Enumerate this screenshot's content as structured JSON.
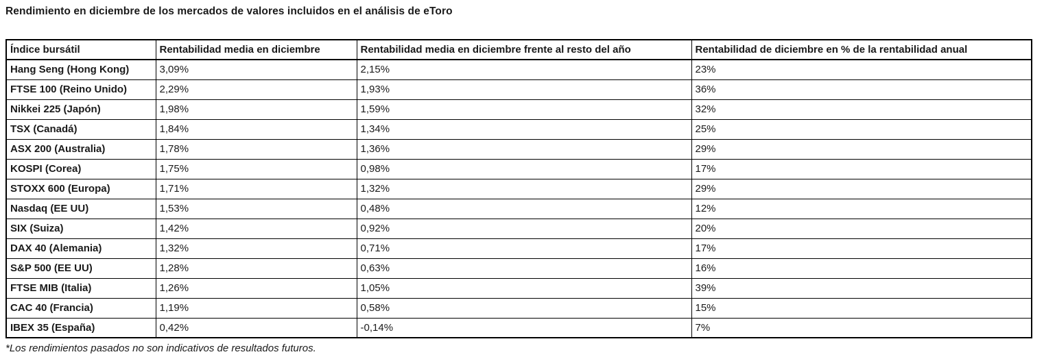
{
  "page": {
    "title": "Rendimiento en diciembre de los mercados de valores incluidos en el análisis de eToro",
    "footnote": "*Los rendimientos pasados no son indicativos de resultados futuros."
  },
  "table": {
    "columns": [
      "Índice bursátil",
      "Rentabilidad media en diciembre",
      "Rentabilidad media en diciembre frente al resto del año",
      "Rentabilidad de diciembre en % de la rentabilidad anual"
    ],
    "rows": [
      [
        "Hang Seng (Hong Kong)",
        "3,09%",
        "2,15%",
        "23%"
      ],
      [
        "FTSE 100 (Reino Unido)",
        "2,29%",
        "1,93%",
        "36%"
      ],
      [
        "Nikkei 225 (Japón)",
        "1,98%",
        "1,59%",
        "32%"
      ],
      [
        "TSX (Canadá)",
        "1,84%",
        "1,34%",
        "25%"
      ],
      [
        "ASX 200 (Australia)",
        "1,78%",
        "1,36%",
        "29%"
      ],
      [
        "KOSPI (Corea)",
        "1,75%",
        "0,98%",
        "17%"
      ],
      [
        "STOXX 600 (Europa)",
        "1,71%",
        "1,32%",
        "29%"
      ],
      [
        "Nasdaq (EE UU)",
        "1,53%",
        "0,48%",
        "12%"
      ],
      [
        "SIX (Suiza)",
        "1,42%",
        "0,92%",
        "20%"
      ],
      [
        "DAX 40 (Alemania)",
        "1,32%",
        "0,71%",
        "17%"
      ],
      [
        "S&P 500 (EE UU)",
        "1,28%",
        "0,63%",
        "16%"
      ],
      [
        "FTSE MIB (Italia)",
        "1,26%",
        "1,05%",
        "39%"
      ],
      [
        "CAC 40 (Francia)",
        "1,19%",
        "0,58%",
        "15%"
      ],
      [
        "IBEX 35 (España)",
        "0,42%",
        "-0,14%",
        "7%"
      ]
    ]
  },
  "chart_data": {
    "type": "table",
    "title": "Rendimiento en diciembre de los mercados de valores incluidos en el análisis de eToro",
    "columns": [
      "Índice bursátil",
      "Rentabilidad media en diciembre",
      "Rentabilidad media en diciembre frente al resto del año",
      "Rentabilidad de diciembre en % de la rentabilidad anual"
    ],
    "rows": [
      {
        "indice": "Hang Seng (Hong Kong)",
        "rentabilidad_media_diciembre_pct": 3.09,
        "frente_resto_ano_pct": 2.15,
        "pct_rentabilidad_anual": 23
      },
      {
        "indice": "FTSE 100 (Reino Unido)",
        "rentabilidad_media_diciembre_pct": 2.29,
        "frente_resto_ano_pct": 1.93,
        "pct_rentabilidad_anual": 36
      },
      {
        "indice": "Nikkei 225 (Japón)",
        "rentabilidad_media_diciembre_pct": 1.98,
        "frente_resto_ano_pct": 1.59,
        "pct_rentabilidad_anual": 32
      },
      {
        "indice": "TSX (Canadá)",
        "rentabilidad_media_diciembre_pct": 1.84,
        "frente_resto_ano_pct": 1.34,
        "pct_rentabilidad_anual": 25
      },
      {
        "indice": "ASX 200 (Australia)",
        "rentabilidad_media_diciembre_pct": 1.78,
        "frente_resto_ano_pct": 1.36,
        "pct_rentabilidad_anual": 29
      },
      {
        "indice": "KOSPI (Corea)",
        "rentabilidad_media_diciembre_pct": 1.75,
        "frente_resto_ano_pct": 0.98,
        "pct_rentabilidad_anual": 17
      },
      {
        "indice": "STOXX 600 (Europa)",
        "rentabilidad_media_diciembre_pct": 1.71,
        "frente_resto_ano_pct": 1.32,
        "pct_rentabilidad_anual": 29
      },
      {
        "indice": "Nasdaq (EE UU)",
        "rentabilidad_media_diciembre_pct": 1.53,
        "frente_resto_ano_pct": 0.48,
        "pct_rentabilidad_anual": 12
      },
      {
        "indice": "SIX (Suiza)",
        "rentabilidad_media_diciembre_pct": 1.42,
        "frente_resto_ano_pct": 0.92,
        "pct_rentabilidad_anual": 20
      },
      {
        "indice": "DAX 40 (Alemania)",
        "rentabilidad_media_diciembre_pct": 1.32,
        "frente_resto_ano_pct": 0.71,
        "pct_rentabilidad_anual": 17
      },
      {
        "indice": "S&P 500 (EE UU)",
        "rentabilidad_media_diciembre_pct": 1.28,
        "frente_resto_ano_pct": 0.63,
        "pct_rentabilidad_anual": 16
      },
      {
        "indice": "FTSE MIB (Italia)",
        "rentabilidad_media_diciembre_pct": 1.26,
        "frente_resto_ano_pct": 1.05,
        "pct_rentabilidad_anual": 39
      },
      {
        "indice": "CAC 40 (Francia)",
        "rentabilidad_media_diciembre_pct": 1.19,
        "frente_resto_ano_pct": 0.58,
        "pct_rentabilidad_anual": 15
      },
      {
        "indice": "IBEX 35 (España)",
        "rentabilidad_media_diciembre_pct": 0.42,
        "frente_resto_ano_pct": -0.14,
        "pct_rentabilidad_anual": 7
      }
    ],
    "footnote": "*Los rendimientos pasados no son indicativos de resultados futuros."
  }
}
